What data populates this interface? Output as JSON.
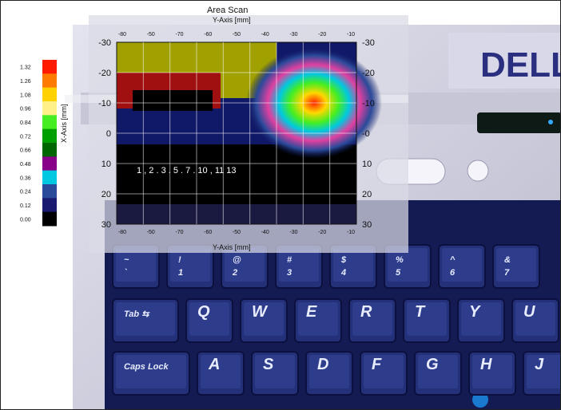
{
  "plot": {
    "title": "Area Scan",
    "x_axis_label": "Y-Axis [mm]",
    "y_axis_label": "X-Axis [mm]",
    "x_ticks": [
      "-80",
      "-50",
      "-70",
      "-60",
      "-50",
      "-40",
      "-30",
      "-20",
      "-10"
    ],
    "y_ticks_left": [
      "-30",
      "-20",
      "-10",
      "0",
      "10",
      "20",
      "30"
    ],
    "y_ticks_right": [
      "-30",
      "-20",
      "-10",
      "-0",
      "10",
      "20",
      "30"
    ]
  },
  "colorbar": {
    "values": [
      "1.32",
      "1.26",
      "1.08",
      "0.96",
      "0.84",
      "0.72",
      "0.66",
      "0.48",
      "0.36",
      "0.24",
      "0.12",
      "0.00"
    ],
    "colors": [
      "#ff1a00",
      "#ff7a00",
      "#ffd200",
      "#fff08a",
      "#44ee22",
      "#00a000",
      "#006600",
      "#880088",
      "#00c8e0",
      "#2a4a9a",
      "#1a1a70",
      "#000000"
    ]
  },
  "keyboard": {
    "row_numbers": [
      "~\n`",
      "!\n1",
      "@\n2",
      "#\n3",
      "$\n4",
      "%\n5",
      "^\n6",
      "&\n7"
    ],
    "row_qwerty": [
      "Tab ⇆",
      "Q",
      "W",
      "E",
      "R",
      "T",
      "Y",
      "U"
    ],
    "row_home": [
      "Caps Lock",
      "A",
      "S",
      "D",
      "F",
      "G",
      "H",
      "J"
    ]
  },
  "plot_text_strip": "1 , 2 . 3 . 5 . 7 . 10 ,  11  13",
  "colors": {
    "laptop_body": "#cfd0de",
    "key_face": "#243078",
    "overlay": "#d9dbe4"
  }
}
